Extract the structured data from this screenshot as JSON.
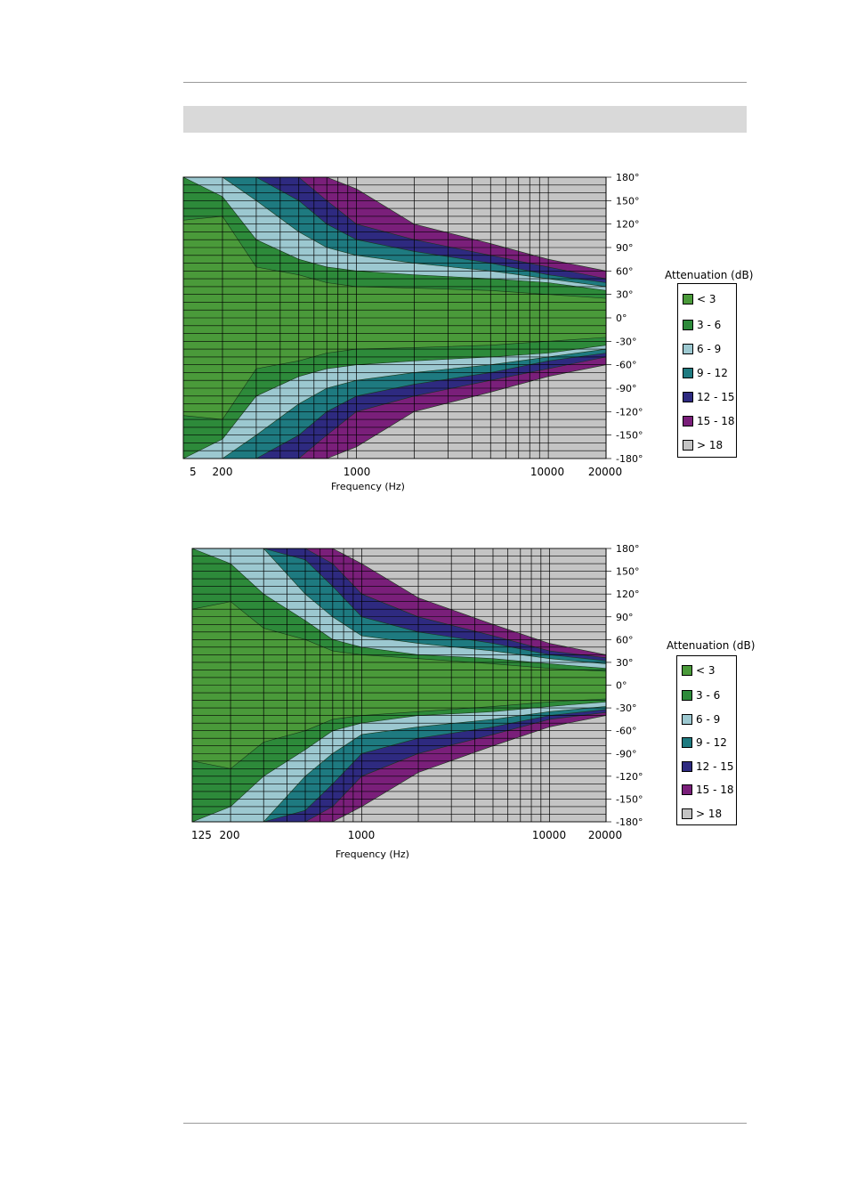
{
  "legend": {
    "title": "Attenuation (dB)",
    "items": [
      {
        "label": "< 3",
        "color": "#4a9a3a"
      },
      {
        "label": "3 - 6",
        "color": "#2d8a3a"
      },
      {
        "label": "6 - 9",
        "color": "#9cc8d0"
      },
      {
        "label": "9 - 12",
        "color": "#1e7a80"
      },
      {
        "label": "12 - 15",
        "color": "#2e2a80"
      },
      {
        "label": "15 - 18",
        "color": "#7a1f7a"
      },
      {
        "label": "> 18",
        "color": "#c4c4c4"
      }
    ]
  },
  "chart_data": [
    {
      "type": "heatmap",
      "xlabel": "Frequency (Hz)",
      "x_scale": "log",
      "x_ticks": [
        "5",
        "200",
        "1000",
        "10000",
        "20000"
      ],
      "y_ticks": [
        "180°",
        "150°",
        "120°",
        "90°",
        "60°",
        "30°",
        "0°",
        "-30°",
        "-60°",
        "-90°",
        "-120°",
        "-150°",
        "-180°"
      ],
      "y_range": [
        -180,
        180
      ],
      "z_label": "Attenuation (dB)",
      "contours": {
        "frequencies": [
          125,
          200,
          300,
          500,
          700,
          1000,
          2000,
          5000,
          10000,
          20000
        ],
        "boundary_angles_deg": [
          [
            125,
            130,
            65,
            55,
            45,
            40,
            38,
            35,
            30,
            25
          ],
          [
            180,
            155,
            100,
            75,
            65,
            60,
            55,
            50,
            45,
            35
          ],
          [
            180,
            180,
            150,
            110,
            90,
            80,
            70,
            60,
            50,
            40
          ],
          [
            180,
            180,
            180,
            150,
            120,
            100,
            85,
            70,
            55,
            45
          ],
          [
            180,
            180,
            180,
            180,
            150,
            120,
            100,
            80,
            65,
            50
          ],
          [
            180,
            180,
            180,
            180,
            180,
            165,
            120,
            95,
            75,
            60
          ]
        ]
      }
    },
    {
      "type": "heatmap",
      "xlabel": "Frequency (Hz)",
      "x_scale": "log",
      "x_ticks": [
        "125",
        "200",
        "1000",
        "10000",
        "20000"
      ],
      "y_ticks": [
        "180°",
        "150°",
        "120°",
        "90°",
        "60°",
        "30°",
        "0°",
        "-30°",
        "-60°",
        "-90°",
        "-120°",
        "-150°",
        "-180°"
      ],
      "y_range": [
        -180,
        180
      ],
      "z_label": "Attenuation (dB)",
      "contours": {
        "frequencies": [
          125,
          200,
          300,
          500,
          700,
          1000,
          2000,
          5000,
          10000,
          20000
        ],
        "boundary_angles_deg": [
          [
            100,
            110,
            75,
            60,
            45,
            40,
            35,
            28,
            22,
            18
          ],
          [
            180,
            160,
            120,
            85,
            60,
            50,
            40,
            35,
            28,
            22
          ],
          [
            180,
            180,
            180,
            120,
            90,
            65,
            55,
            45,
            35,
            28
          ],
          [
            180,
            180,
            180,
            165,
            130,
            90,
            70,
            55,
            40,
            32
          ],
          [
            180,
            180,
            180,
            180,
            160,
            120,
            90,
            65,
            45,
            36
          ],
          [
            180,
            180,
            180,
            180,
            180,
            160,
            115,
            80,
            55,
            40
          ]
        ]
      }
    }
  ]
}
